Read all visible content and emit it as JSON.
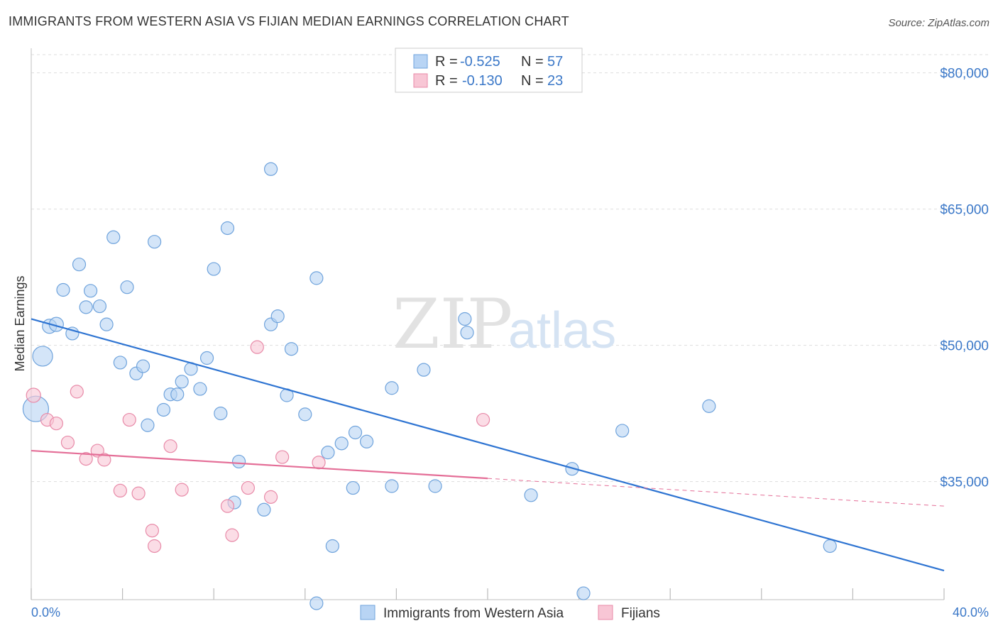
{
  "title": "IMMIGRANTS FROM WESTERN ASIA VS FIJIAN MEDIAN EARNINGS CORRELATION CHART",
  "source": "Source: ZipAtlas.com",
  "watermark": {
    "part1": "ZIP",
    "part2": "atlas"
  },
  "colors": {
    "blue_fill": "#b8d4f4",
    "blue_stroke": "#6fa3dc",
    "blue_line": "#2e74d2",
    "pink_fill": "#f8c6d5",
    "pink_stroke": "#e88aa8",
    "pink_line": "#e46e97",
    "tick_text": "#3b78c8",
    "grid": "#dddddd"
  },
  "legend": {
    "rows": [
      {
        "r_label": "R = ",
        "r_value": "-0.525",
        "n_label": "N = ",
        "n_value": "57"
      },
      {
        "r_label": "R = ",
        "r_value": "-0.130",
        "n_label": "N = ",
        "n_value": "23"
      }
    ]
  },
  "chart_data": {
    "type": "scatter",
    "xlabel": "",
    "ylabel": "Median Earnings",
    "xlim": [
      0,
      40
    ],
    "ylim": [
      22000,
      82000
    ],
    "y_ticks": [
      {
        "value": 80000,
        "label": "$80,000"
      },
      {
        "value": 65000,
        "label": "$65,000"
      },
      {
        "value": 50000,
        "label": "$50,000"
      },
      {
        "value": 35000,
        "label": "$35,000"
      }
    ],
    "x_tick_labels": {
      "min": "0.0%",
      "max": "40.0%"
    },
    "x_minor_ticks": [
      0,
      4,
      8,
      12,
      16,
      20,
      24,
      28,
      32,
      36,
      40
    ],
    "grid": true,
    "legend_position": "top-center",
    "series": [
      {
        "name": "Immigrants from Western Asia",
        "color": "#b8d4f4",
        "trend": {
          "x0": 0,
          "y0": 52900,
          "x1": 40,
          "y1": 25200,
          "solid_to": 40
        },
        "points": [
          [
            0.2,
            43000,
            18
          ],
          [
            0.5,
            48800,
            14
          ],
          [
            0.8,
            52100,
            10
          ],
          [
            1.1,
            52300,
            10
          ],
          [
            1.4,
            56100,
            9
          ],
          [
            1.8,
            51300,
            9
          ],
          [
            2.1,
            58900,
            9
          ],
          [
            2.4,
            54200,
            9
          ],
          [
            2.6,
            56000,
            9
          ],
          [
            3.0,
            54300,
            9
          ],
          [
            3.3,
            52300,
            9
          ],
          [
            3.6,
            61900,
            9
          ],
          [
            3.9,
            48100,
            9
          ],
          [
            4.2,
            56400,
            9
          ],
          [
            4.6,
            46900,
            9
          ],
          [
            4.9,
            47700,
            9
          ],
          [
            5.1,
            41200,
            9
          ],
          [
            5.4,
            61400,
            9
          ],
          [
            5.8,
            42900,
            9
          ],
          [
            6.1,
            44600,
            9
          ],
          [
            6.4,
            44600,
            9
          ],
          [
            6.6,
            46000,
            9
          ],
          [
            7.0,
            47400,
            9
          ],
          [
            7.4,
            45200,
            9
          ],
          [
            7.7,
            48600,
            9
          ],
          [
            8.0,
            58400,
            9
          ],
          [
            8.3,
            42500,
            9
          ],
          [
            8.6,
            62900,
            9
          ],
          [
            8.9,
            32700,
            9
          ],
          [
            9.1,
            37200,
            9
          ],
          [
            10.2,
            31900,
            9
          ],
          [
            10.5,
            69400,
            9
          ],
          [
            10.5,
            52300,
            9
          ],
          [
            10.8,
            53200,
            9
          ],
          [
            11.2,
            44500,
            9
          ],
          [
            11.4,
            49600,
            9
          ],
          [
            12.0,
            42400,
            9
          ],
          [
            12.5,
            57400,
            9
          ],
          [
            12.5,
            21600,
            9
          ],
          [
            13.0,
            38200,
            9
          ],
          [
            13.2,
            27900,
            9
          ],
          [
            13.6,
            39200,
            9
          ],
          [
            14.1,
            34300,
            9
          ],
          [
            14.2,
            40400,
            9
          ],
          [
            14.7,
            39400,
            9
          ],
          [
            15.8,
            34500,
            9
          ],
          [
            15.8,
            45300,
            9
          ],
          [
            17.2,
            47300,
            9
          ],
          [
            17.7,
            34500,
            9
          ],
          [
            19.0,
            52900,
            9
          ],
          [
            19.1,
            51400,
            9
          ],
          [
            21.9,
            33500,
            9
          ],
          [
            23.7,
            36400,
            9
          ],
          [
            24.2,
            22700,
            9
          ],
          [
            25.9,
            40600,
            9
          ],
          [
            29.7,
            43300,
            9
          ],
          [
            35.0,
            27900,
            9
          ]
        ]
      },
      {
        "name": "Fijians",
        "color": "#f8c6d5",
        "trend": {
          "x0": 0,
          "y0": 38400,
          "x1": 40,
          "y1": 32300,
          "solid_to": 20
        },
        "points": [
          [
            0.1,
            44500,
            10
          ],
          [
            0.7,
            41800,
            9
          ],
          [
            1.1,
            41400,
            9
          ],
          [
            1.6,
            39300,
            9
          ],
          [
            2.0,
            44900,
            9
          ],
          [
            2.4,
            37500,
            9
          ],
          [
            2.9,
            38400,
            9
          ],
          [
            3.2,
            37400,
            9
          ],
          [
            3.9,
            34000,
            9
          ],
          [
            4.3,
            41800,
            9
          ],
          [
            4.7,
            33700,
            9
          ],
          [
            5.3,
            29600,
            9
          ],
          [
            5.4,
            27900,
            9
          ],
          [
            6.1,
            38900,
            9
          ],
          [
            6.6,
            34100,
            9
          ],
          [
            8.6,
            32300,
            9
          ],
          [
            8.8,
            29100,
            9
          ],
          [
            9.5,
            34300,
            9
          ],
          [
            9.9,
            49800,
            9
          ],
          [
            10.5,
            33300,
            9
          ],
          [
            11.0,
            37700,
            9
          ],
          [
            12.6,
            37100,
            9
          ],
          [
            19.8,
            41800,
            9
          ]
        ]
      }
    ]
  }
}
